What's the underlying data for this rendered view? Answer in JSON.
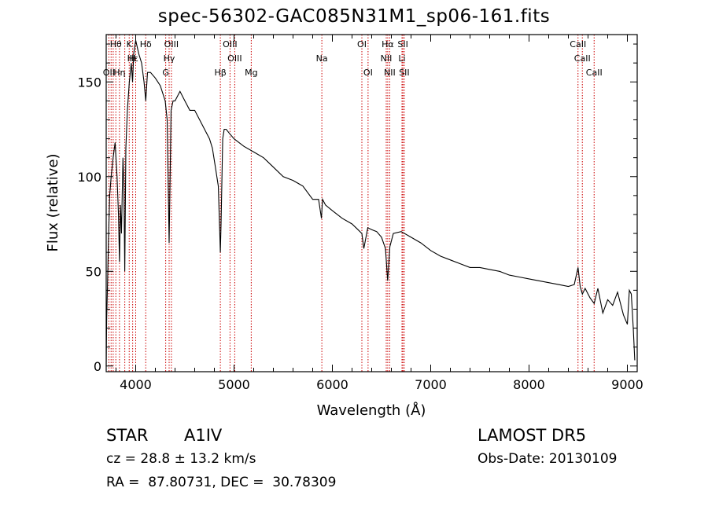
{
  "title": "spec-56302-GAC085N31M1_sp06-161.fits",
  "info": {
    "class": "STAR",
    "subclass": "A1IV",
    "survey": "LAMOST DR5",
    "cz": "cz = 28.8 ± 13.2 km/s",
    "obs_date": "Obs-Date: 20130109",
    "coords": "RA =  87.80731, DEC =  30.78309"
  },
  "colors": {
    "line": "#000000",
    "marker": "#cc0000"
  },
  "chart_data": {
    "type": "line",
    "xlabel": "Wavelength (Å)",
    "ylabel": "Flux (relative)",
    "xlim": [
      3700,
      9100
    ],
    "ylim": [
      -3,
      175
    ],
    "xticks": [
      4000,
      5000,
      6000,
      7000,
      8000,
      9000
    ],
    "yticks": [
      0,
      50,
      100,
      150
    ],
    "grid": false,
    "series": [
      {
        "x": [
          3700,
          3705,
          3712,
          3722,
          3735,
          3750,
          3770,
          3790,
          3810,
          3825,
          3835,
          3845,
          3855,
          3870,
          3880,
          3889,
          3900,
          3915,
          3935,
          3955,
          3968,
          3980,
          4000,
          4030,
          4060,
          4085,
          4102,
          4120,
          4150,
          4200,
          4250,
          4300,
          4320,
          4340,
          4360,
          4380,
          4400,
          4450,
          4500,
          4550,
          4600,
          4650,
          4700,
          4750,
          4780,
          4810,
          4840,
          4855,
          4861,
          4868,
          4885,
          4900,
          4920,
          4950,
          5000,
          5100,
          5200,
          5300,
          5400,
          5500,
          5600,
          5700,
          5800,
          5860,
          5889,
          5900,
          5930,
          6000,
          6100,
          6200,
          6260,
          6300,
          6320,
          6360,
          6400,
          6450,
          6500,
          6540,
          6562,
          6585,
          6620,
          6700,
          6800,
          6900,
          7000,
          7100,
          7200,
          7300,
          7400,
          7500,
          7600,
          7700,
          7800,
          7900,
          8000,
          8100,
          8200,
          8300,
          8400,
          8460,
          8498,
          8520,
          8542,
          8570,
          8620,
          8662,
          8700,
          8750,
          8800,
          8850,
          8900,
          8960,
          9000,
          9020,
          9040,
          9060,
          9075
        ],
        "y": [
          0,
          25,
          40,
          65,
          90,
          100,
          110,
          118,
          100,
          80,
          55,
          85,
          70,
          110,
          95,
          50,
          115,
          135,
          150,
          160,
          150,
          165,
          172,
          165,
          160,
          150,
          140,
          155,
          155,
          152,
          148,
          140,
          130,
          65,
          135,
          140,
          140,
          145,
          140,
          135,
          135,
          130,
          125,
          120,
          115,
          105,
          95,
          70,
          60,
          75,
          120,
          125,
          125,
          123,
          120,
          116,
          113,
          110,
          105,
          100,
          98,
          95,
          88,
          88,
          78,
          88,
          85,
          82,
          78,
          75,
          72,
          70,
          62,
          73,
          72,
          71,
          68,
          62,
          45,
          63,
          70,
          71,
          68,
          65,
          61,
          58,
          56,
          54,
          52,
          52,
          51,
          50,
          48,
          47,
          46,
          45,
          44,
          43,
          42,
          43,
          52,
          42,
          38,
          41,
          36,
          33,
          41,
          28,
          35,
          32,
          39,
          27,
          22,
          40,
          38,
          20,
          3
        ]
      }
    ],
    "annotations": [
      {
        "label": "Hβ",
        "x": 4861,
        "row": 3
      },
      {
        "label": "Mg",
        "x": 5175,
        "row": 3
      },
      {
        "label": "OII",
        "x": 3727,
        "row": 3
      },
      {
        "label": "OIII",
        "x": 4959,
        "row": 1
      },
      {
        "label": "OIII",
        "x": 5007,
        "row": 2
      },
      {
        "label": "OIII",
        "x": 4363,
        "row": 1
      },
      {
        "label": "Hγ",
        "x": 4340,
        "row": 2
      },
      {
        "label": "G",
        "x": 4305,
        "row": 3
      },
      {
        "label": "Hδ",
        "x": 4102,
        "row": 1
      },
      {
        "label": "K",
        "x": 3934,
        "row": 1
      },
      {
        "label": "H",
        "x": 3969,
        "row": 2
      },
      {
        "label": "Hε",
        "x": 3970,
        "row": 2
      },
      {
        "label": "Hη",
        "x": 3835,
        "row": 3
      },
      {
        "label": "Hθ",
        "x": 3798,
        "row": 1
      },
      {
        "label": "Na",
        "x": 5893,
        "row": 2
      },
      {
        "label": "OI",
        "x": 6300,
        "row": 1
      },
      {
        "label": "OI",
        "x": 6363,
        "row": 3
      },
      {
        "label": "Hα",
        "x": 6563,
        "row": 1
      },
      {
        "label": "NII",
        "x": 6548,
        "row": 2
      },
      {
        "label": "NII",
        "x": 6583,
        "row": 3
      },
      {
        "label": "SII",
        "x": 6717,
        "row": 1
      },
      {
        "label": "Li",
        "x": 6708,
        "row": 2
      },
      {
        "label": "SII",
        "x": 6731,
        "row": 3
      },
      {
        "label": "CaII",
        "x": 8498,
        "row": 1
      },
      {
        "label": "CaII",
        "x": 8542,
        "row": 2
      },
      {
        "label": "CaII",
        "x": 8662,
        "row": 3
      }
    ],
    "extra_markers": [
      3750,
      3771,
      3889,
      4000
    ]
  }
}
